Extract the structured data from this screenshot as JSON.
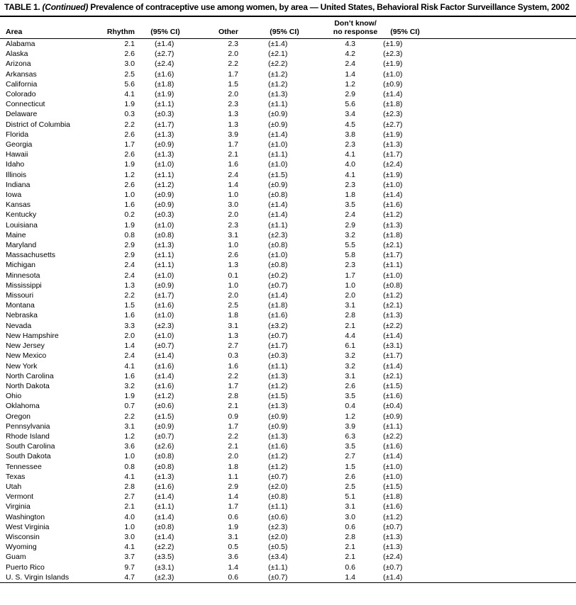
{
  "title": {
    "prefix": "TABLE 1.",
    "continued": "(Continued)",
    "rest": "Prevalence of contraceptive use among women, by area — United States, Behavioral Risk Factor Surveillance System, 2002"
  },
  "table": {
    "headers": {
      "area": "Area",
      "rhythm": "Rhythm",
      "rhythm_ci": "(95% CI)",
      "other": "Other",
      "other_ci": "(95% CI)",
      "dontknow_line1": "Don’t know/",
      "dontknow_line2": "no response",
      "dontknow_ci": "(95% CI)"
    },
    "rows": [
      [
        "Alabama",
        "2.1",
        "(±1.4)",
        "2.3",
        "(±1.4)",
        "4.3",
        "(±1.9)"
      ],
      [
        "Alaska",
        "2.6",
        "(±2.7)",
        "2.0",
        "(±2.1)",
        "4.2",
        "(±2.3)"
      ],
      [
        "Arizona",
        "3.0",
        "(±2.4)",
        "2.2",
        "(±2.2)",
        "2.4",
        "(±1.9)"
      ],
      [
        "Arkansas",
        "2.5",
        "(±1.6)",
        "1.7",
        "(±1.2)",
        "1.4",
        "(±1.0)"
      ],
      [
        "California",
        "5.6",
        "(±1.8)",
        "1.5",
        "(±1.2)",
        "1.2",
        "(±0.9)"
      ],
      [
        "Colorado",
        "4.1",
        "(±1.9)",
        "2.0",
        "(±1.3)",
        "2.9",
        "(±1.4)"
      ],
      [
        "Connecticut",
        "1.9",
        "(±1.1)",
        "2.3",
        "(±1.1)",
        "5.6",
        "(±1.8)"
      ],
      [
        "Delaware",
        "0.3",
        "(±0.3)",
        "1.3",
        "(±0.9)",
        "3.4",
        "(±2.3)"
      ],
      [
        "District of Columbia",
        "2.2",
        "(±1.7)",
        "1.3",
        "(±0.9)",
        "4.5",
        "(±2.7)"
      ],
      [
        "Florida",
        "2.6",
        "(±1.3)",
        "3.9",
        "(±1.4)",
        "3.8",
        "(±1.9)"
      ],
      [
        "Georgia",
        "1.7",
        "(±0.9)",
        "1.7",
        "(±1.0)",
        "2.3",
        "(±1.3)"
      ],
      [
        "Hawaii",
        "2.6",
        "(±1.3)",
        "2.1",
        "(±1.1)",
        "4.1",
        "(±1.7)"
      ],
      [
        "Idaho",
        "1.9",
        "(±1.0)",
        "1.6",
        "(±1.0)",
        "4.0",
        "(±2.4)"
      ],
      [
        "Illinois",
        "1.2",
        "(±1.1)",
        "2.4",
        "(±1.5)",
        "4.1",
        "(±1.9)"
      ],
      [
        "Indiana",
        "2.6",
        "(±1.2)",
        "1.4",
        "(±0.9)",
        "2.3",
        "(±1.0)"
      ],
      [
        "Iowa",
        "1.0",
        "(±0.9)",
        "1.0",
        "(±0.8)",
        "1.8",
        "(±1.4)"
      ],
      [
        "Kansas",
        "1.6",
        "(±0.9)",
        "3.0",
        "(±1.4)",
        "3.5",
        "(±1.6)"
      ],
      [
        "Kentucky",
        "0.2",
        "(±0.3)",
        "2.0",
        "(±1.4)",
        "2.4",
        "(±1.2)"
      ],
      [
        "Louisiana",
        "1.9",
        "(±1.0)",
        "2.3",
        "(±1.1)",
        "2.9",
        "(±1.3)"
      ],
      [
        "Maine",
        "0.8",
        "(±0.8)",
        "3.1",
        "(±2.3)",
        "3.2",
        "(±1.8)"
      ],
      [
        "Maryland",
        "2.9",
        "(±1.3)",
        "1.0",
        "(±0.8)",
        "5.5",
        "(±2.1)"
      ],
      [
        "Massachusetts",
        "2.9",
        "(±1.1)",
        "2.6",
        "(±1.0)",
        "5.8",
        "(±1.7)"
      ],
      [
        "Michigan",
        "2.4",
        "(±1.1)",
        "1.3",
        "(±0.8)",
        "2.3",
        "(±1.1)"
      ],
      [
        "Minnesota",
        "2.4",
        "(±1.0)",
        "0.1",
        "(±0.2)",
        "1.7",
        "(±1.0)"
      ],
      [
        "Mississippi",
        "1.3",
        "(±0.9)",
        "1.0",
        "(±0.7)",
        "1.0",
        "(±0.8)"
      ],
      [
        "Missouri",
        "2.2",
        "(±1.7)",
        "2.0",
        "(±1.4)",
        "2.0",
        "(±1.2)"
      ],
      [
        "Montana",
        "1.5",
        "(±1.6)",
        "2.5",
        "(±1.8)",
        "3.1",
        "(±2.1)"
      ],
      [
        "Nebraska",
        "1.6",
        "(±1.0)",
        "1.8",
        "(±1.6)",
        "2.8",
        "(±1.3)"
      ],
      [
        "Nevada",
        "3.3",
        "(±2.3)",
        "3.1",
        "(±3.2)",
        "2.1",
        "(±2.2)"
      ],
      [
        "New Hampshire",
        "2.0",
        "(±1.0)",
        "1.3",
        "(±0.7)",
        "4.4",
        "(±1.4)"
      ],
      [
        "New Jersey",
        "1.4",
        "(±0.7)",
        "2.7",
        "(±1.7)",
        "6.1",
        "(±3.1)"
      ],
      [
        "New Mexico",
        "2.4",
        "(±1.4)",
        "0.3",
        "(±0.3)",
        "3.2",
        "(±1.7)"
      ],
      [
        "New York",
        "4.1",
        "(±1.6)",
        "1.6",
        "(±1.1)",
        "3.2",
        "(±1.4)"
      ],
      [
        "North Carolina",
        "1.6",
        "(±1.4)",
        "2.2",
        "(±1.3)",
        "3.1",
        "(±2.1)"
      ],
      [
        "North Dakota",
        "3.2",
        "(±1.6)",
        "1.7",
        "(±1.2)",
        "2.6",
        "(±1.5)"
      ],
      [
        "Ohio",
        "1.9",
        "(±1.2)",
        "2.8",
        "(±1.5)",
        "3.5",
        "(±1.6)"
      ],
      [
        "Oklahoma",
        "0.7",
        "(±0.6)",
        "2.1",
        "(±1.3)",
        "0.4",
        "(±0.4)"
      ],
      [
        "Oregon",
        "2.2",
        "(±1.5)",
        "0.9",
        "(±0.9)",
        "1.2",
        "(±0.9)"
      ],
      [
        "Pennsylvania",
        "3.1",
        "(±0.9)",
        "1.7",
        "(±0.9)",
        "3.9",
        "(±1.1)"
      ],
      [
        "Rhode Island",
        "1.2",
        "(±0.7)",
        "2.2",
        "(±1.3)",
        "6.3",
        "(±2.2)"
      ],
      [
        "South Carolina",
        "3.6",
        "(±2.6)",
        "2.1",
        "(±1.6)",
        "3.5",
        "(±1.6)"
      ],
      [
        "South Dakota",
        "1.0",
        "(±0.8)",
        "2.0",
        "(±1.2)",
        "2.7",
        "(±1.4)"
      ],
      [
        "Tennessee",
        "0.8",
        "(±0.8)",
        "1.8",
        "(±1.2)",
        "1.5",
        "(±1.0)"
      ],
      [
        "Texas",
        "4.1",
        "(±1.3)",
        "1.1",
        "(±0.7)",
        "2.6",
        "(±1.0)"
      ],
      [
        "Utah",
        "2.8",
        "(±1.6)",
        "2.9",
        "(±2.0)",
        "2.5",
        "(±1.5)"
      ],
      [
        "Vermont",
        "2.7",
        "(±1.4)",
        "1.4",
        "(±0.8)",
        "5.1",
        "(±1.8)"
      ],
      [
        "Virginia",
        "2.1",
        "(±1.1)",
        "1.7",
        "(±1.1)",
        "3.1",
        "(±1.6)"
      ],
      [
        "Washington",
        "4.0",
        "(±1.4)",
        "0.6",
        "(±0.6)",
        "3.0",
        "(±1.2)"
      ],
      [
        "West Virginia",
        "1.0",
        "(±0.8)",
        "1.9",
        "(±2.3)",
        "0.6",
        "(±0.7)"
      ],
      [
        "Wisconsin",
        "3.0",
        "(±1.4)",
        "3.1",
        "(±2.0)",
        "2.8",
        "(±1.3)"
      ],
      [
        "Wyoming",
        "4.1",
        "(±2.2)",
        "0.5",
        "(±0.5)",
        "2.1",
        "(±1.3)"
      ],
      [
        "Guam",
        "3.7",
        "(±3.5)",
        "3.6",
        "(±3.4)",
        "2.1",
        "(±2.4)"
      ],
      [
        "Puerto Rico",
        "9.7",
        "(±3.1)",
        "1.4",
        "(±1.1)",
        "0.6",
        "(±0.7)"
      ],
      [
        "U. S. Virgin Islands",
        "4.7",
        "(±2.3)",
        "0.6",
        "(±0.7)",
        "1.4",
        "(±1.4)"
      ]
    ]
  }
}
